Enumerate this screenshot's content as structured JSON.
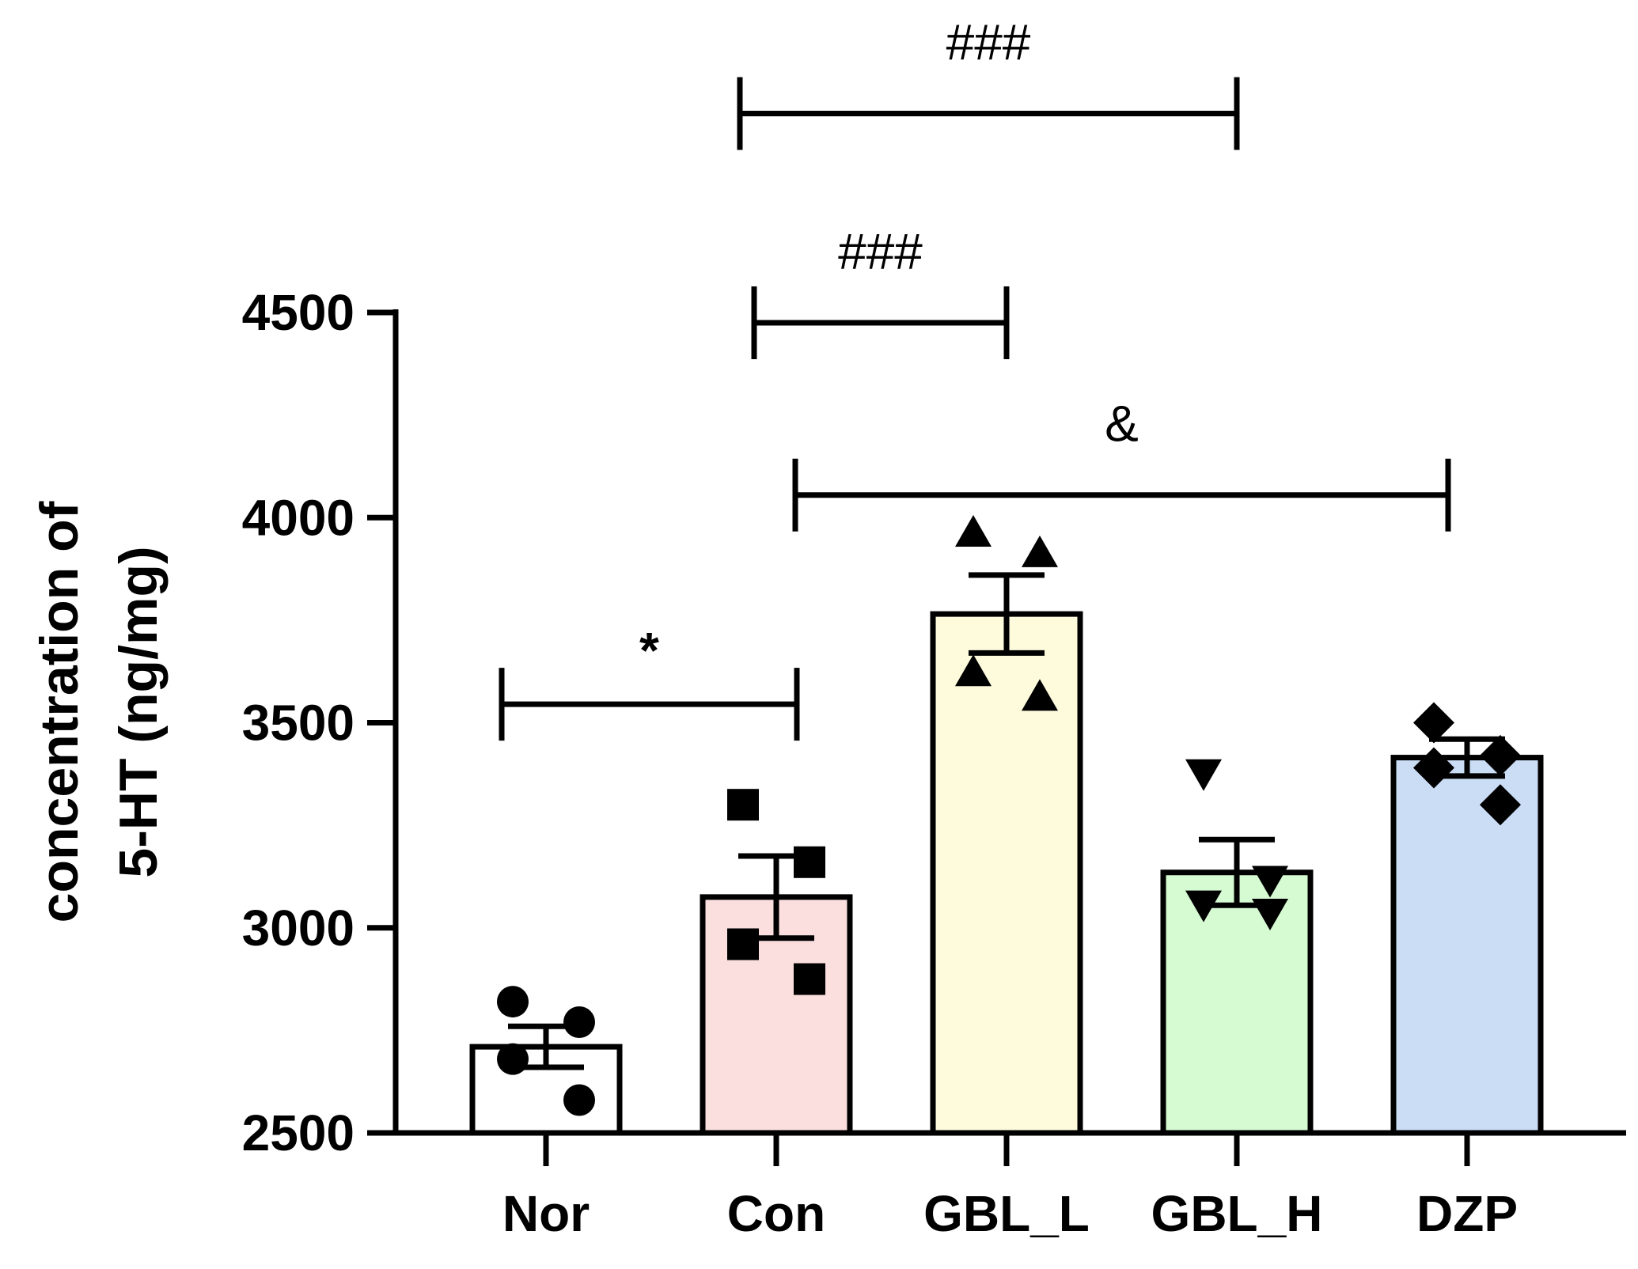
{
  "chart_data": {
    "type": "bar",
    "categories": [
      "Nor",
      "Con",
      "GBL_L",
      "GBL_H",
      "DZP"
    ],
    "values": [
      2710,
      3075,
      3765,
      3135,
      3415
    ],
    "errors": [
      50,
      100,
      95,
      80,
      45
    ],
    "colors": [
      "#ffffff",
      "#fbdede",
      "#fdfbdc",
      "#d6fbd2",
      "#cbdcf5"
    ],
    "markers": [
      "circle",
      "square",
      "triangle-up",
      "triangle-down",
      "diamond"
    ],
    "points": [
      [
        2820,
        2770,
        2680,
        2580
      ],
      [
        3300,
        3160,
        2960,
        2875
      ],
      [
        3960,
        3910,
        3620,
        3560
      ],
      [
        3380,
        3120,
        3060,
        3040
      ],
      [
        3500,
        3420,
        3390,
        3300
      ]
    ],
    "ylabel_line1": "concentration of",
    "ylabel_line2": "5-HT (ng/mg)",
    "xlabel": "",
    "ylim": [
      2500,
      4500
    ],
    "yticks": [
      2500,
      3000,
      3500,
      4000,
      4500
    ],
    "annotations": [
      {
        "from": "Nor",
        "to": "Con",
        "label": "*",
        "level": 3545
      },
      {
        "from": "Con",
        "to": "DZP",
        "label": "&",
        "level": 4055
      },
      {
        "from": "Con",
        "to": "GBL_L",
        "label": "###",
        "level": 4475
      },
      {
        "from": "Con",
        "to": "GBL_H",
        "label": "###",
        "level": 4985
      }
    ]
  }
}
